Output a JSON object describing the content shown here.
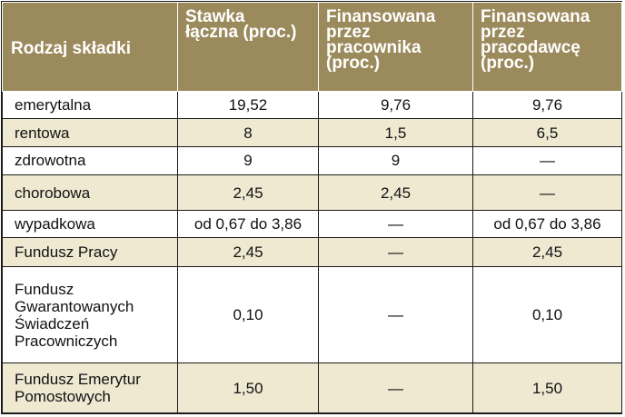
{
  "table": {
    "headers": [
      "Rodzaj składki",
      "Stawka\nłączna (proc.)",
      "Finansowana\nprzez\npracownika\n(proc.)",
      "Finansowana\nprzez\npracodawcę\n(proc.)"
    ],
    "rows": [
      [
        "emerytalna",
        "19,52",
        "9,76",
        "9,76"
      ],
      [
        "rentowa",
        "8",
        "1,5",
        "6,5"
      ],
      [
        "zdrowotna",
        "9",
        "9",
        "—"
      ],
      [
        "chorobowa",
        "2,45",
        "2,45",
        "—"
      ],
      [
        "wypadkowa",
        "od 0,67 do 3,86",
        "—",
        "od 0,67 do 3,86"
      ],
      [
        "Fundusz Pracy",
        "2,45",
        "—",
        "2,45"
      ],
      [
        "Fundusz\nGwarantowanych\nŚwiadczeń\nPracowniczych",
        "0,10",
        "—",
        "0,10"
      ],
      [
        "Fundusz Emerytur\nPomostowych",
        "1,50",
        "—",
        "1,50"
      ]
    ]
  },
  "colors": {
    "header_bg": "#9b8a5c",
    "header_text": "#ffffff",
    "alt_row_bg": "#efe9d2",
    "row_bg": "#ffffff"
  }
}
